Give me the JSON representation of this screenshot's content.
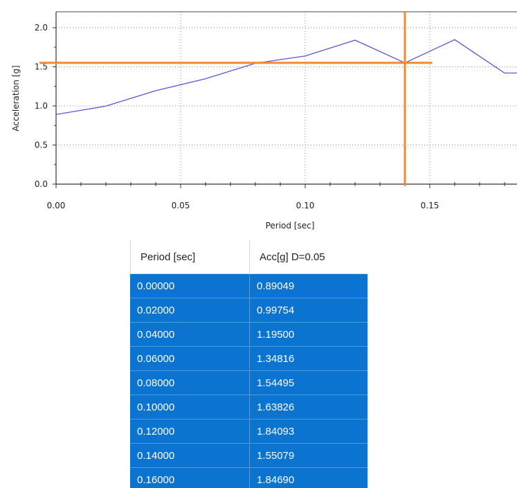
{
  "chart_data": {
    "type": "line",
    "xlabel": "Period [sec]",
    "ylabel": "Acceleration [g]",
    "xlim": [
      0,
      0.18
    ],
    "ylim": [
      0,
      2.2
    ],
    "x_ticks": [
      "0.00",
      "0.05",
      "0.10",
      "0.15"
    ],
    "y_ticks": [
      "0.0",
      "0.5",
      "1.0",
      "1.5",
      "2.0"
    ],
    "grid": true,
    "series": [
      {
        "color": "#5555dd",
        "x": [
          0.0,
          0.02,
          0.04,
          0.06,
          0.08,
          0.1,
          0.12,
          0.14,
          0.16,
          0.18,
          0.19
        ],
        "y": [
          0.89049,
          0.99754,
          1.195,
          1.34816,
          1.54495,
          1.63826,
          1.84093,
          1.55079,
          1.8469,
          1.42,
          1.42
        ]
      }
    ],
    "crosshair": {
      "color": "#f08a30",
      "x": 0.14,
      "y": 1.55079,
      "h_x_end": 0.151
    }
  },
  "table": {
    "headers": [
      "Period [sec]",
      "Acc[g] D=0.05"
    ],
    "rows": [
      [
        "0.00000",
        "0.89049"
      ],
      [
        "0.02000",
        "0.99754"
      ],
      [
        "0.04000",
        "1.19500"
      ],
      [
        "0.06000",
        "1.34816"
      ],
      [
        "0.08000",
        "1.54495"
      ],
      [
        "0.10000",
        "1.63826"
      ],
      [
        "0.12000",
        "1.84093"
      ],
      [
        "0.14000",
        "1.55079"
      ],
      [
        "0.16000",
        "1.84690"
      ]
    ]
  },
  "colors": {
    "selection": "#0a74d0",
    "curve": "#5555dd",
    "crosshair": "#f08a30"
  }
}
